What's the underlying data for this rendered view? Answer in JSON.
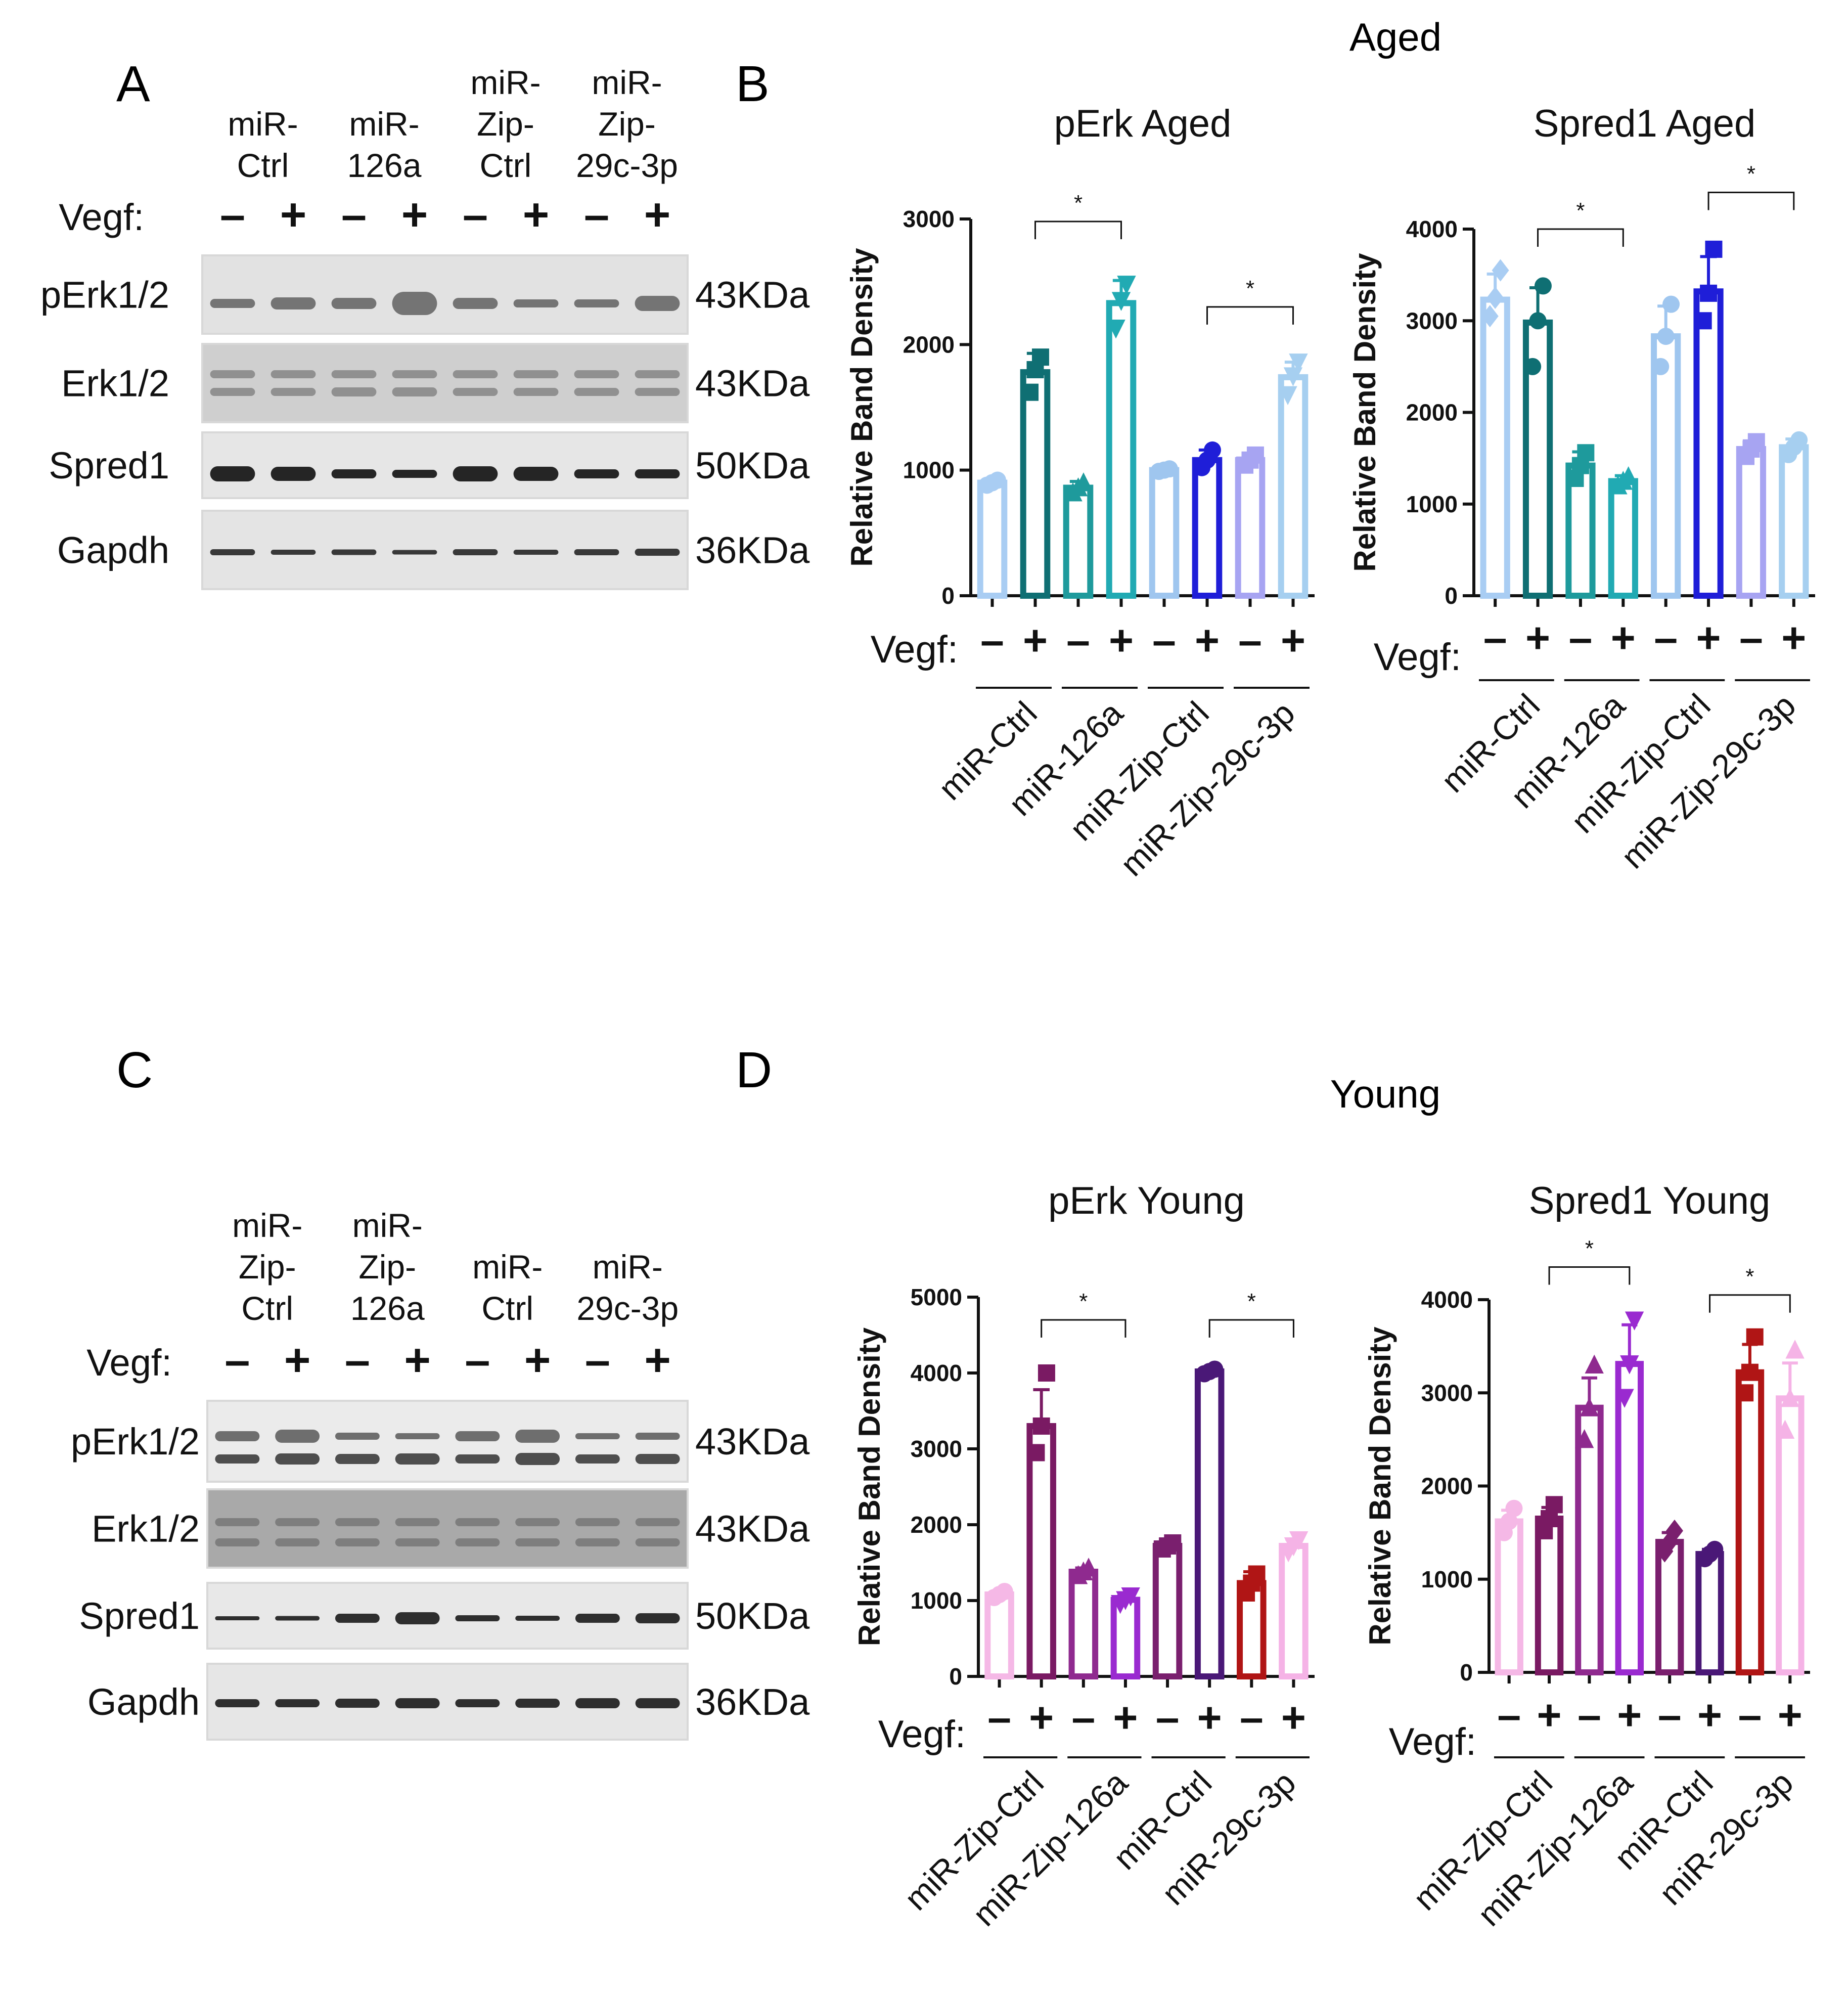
{
  "figure": {
    "panel_a": "A",
    "panel_b": "B",
    "panel_c": "C",
    "panel_d": "D",
    "aged_title": "Aged",
    "young_title": "Young"
  },
  "blot_a": {
    "groups": [
      "miR-\nCtrl",
      "miR-\n126a",
      "miR-\nZip-\nCtrl",
      "miR-\nZip-\n29c-3p"
    ],
    "vegf_label": "Vegf:",
    "signs": [
      "-",
      "+",
      "-",
      "+",
      "-",
      "+",
      "-",
      "+"
    ],
    "rows": [
      {
        "label": "pErk1/2",
        "size": "43KDa"
      },
      {
        "label": "Erk1/2",
        "size": "43KDa"
      },
      {
        "label": "Spred1",
        "size": "50KDa"
      },
      {
        "label": "Gapdh",
        "size": "36KDa"
      }
    ]
  },
  "blot_c": {
    "groups": [
      "miR-\nZip-\nCtrl",
      "miR-\nZip-\n126a",
      "miR-\nCtrl",
      "miR-\n29c-3p"
    ],
    "vegf_label": "Vegf:",
    "signs": [
      "-",
      "+",
      "-",
      "+",
      "-",
      "+",
      "-",
      "+"
    ],
    "rows": [
      {
        "label": "pErk1/2",
        "size": "43KDa"
      },
      {
        "label": "Erk1/2",
        "size": "43KDa"
      },
      {
        "label": "Spred1",
        "size": "50KDa"
      },
      {
        "label": "Gapdh",
        "size": "36KDa"
      }
    ]
  },
  "chart_data": [
    {
      "id": "perk_aged",
      "type": "bar",
      "title": "pErk Aged",
      "ylabel": "Relative Band Density",
      "ylim": [
        0,
        3000
      ],
      "yticks": [
        0,
        1000,
        2000,
        3000
      ],
      "vegf_label": "Vegf:",
      "signs": [
        "-",
        "+",
        "-",
        "+",
        "-",
        "+",
        "-",
        "+"
      ],
      "groups": [
        "miR-Ctrl",
        "miR-126a",
        "miR-Zip-Ctrl",
        "miR-Zip-29c-3p"
      ],
      "values": [
        900,
        1780,
        860,
        2330,
        1000,
        1080,
        1080,
        1740
      ],
      "errors": [
        20,
        150,
        50,
        180,
        20,
        80,
        40,
        120
      ],
      "colors": [
        "#a9cdf3",
        "#0f6f73",
        "#1e9a9c",
        "#21aab3",
        "#9fc6ef",
        "#1f1ed8",
        "#a7a4f2",
        "#a6cff0"
      ],
      "markers": [
        "circle",
        "square",
        "triangle",
        "triangle-down",
        "circle",
        "circle",
        "square",
        "triangle-down"
      ],
      "points": [
        [
          880,
          900,
          920
        ],
        [
          1620,
          1800,
          1900
        ],
        [
          820,
          860,
          900
        ],
        [
          2130,
          2350,
          2480
        ],
        [
          990,
          1000,
          1010
        ],
        [
          1020,
          1080,
          1160
        ],
        [
          1040,
          1080,
          1120
        ],
        [
          1600,
          1750,
          1860
        ]
      ],
      "significance": [
        {
          "from": 1,
          "to": 3,
          "label": "*",
          "y": 2980
        },
        {
          "from": 5,
          "to": 7,
          "label": "*",
          "y": 2300
        }
      ]
    },
    {
      "id": "spred1_aged",
      "type": "bar",
      "title": "Spred1 Aged",
      "ylabel": "Relative Band Density",
      "ylim": [
        0,
        4000
      ],
      "yticks": [
        0,
        1000,
        2000,
        3000,
        4000
      ],
      "vegf_label": "Vegf:",
      "signs": [
        "-",
        "+",
        "-",
        "+",
        "-",
        "+",
        "-",
        "+"
      ],
      "groups": [
        "miR-Ctrl",
        "miR-126a",
        "miR-Zip-Ctrl",
        "miR-Zip-29c-3p"
      ],
      "values": [
        3230,
        2980,
        1420,
        1250,
        2830,
        3320,
        1600,
        1620
      ],
      "errors": [
        280,
        380,
        150,
        60,
        330,
        380,
        90,
        90
      ],
      "colors": [
        "#a9cdf3",
        "#0f6f73",
        "#1e9a9c",
        "#21aab3",
        "#9fc6ef",
        "#1f1ed8",
        "#a7a4f2",
        "#a6cff0"
      ],
      "markers": [
        "diamond",
        "circle",
        "square",
        "triangle",
        "circle",
        "square",
        "square",
        "circle"
      ],
      "points": [
        [
          3050,
          3250,
          3550
        ],
        [
          2500,
          3000,
          3380
        ],
        [
          1280,
          1420,
          1560
        ],
        [
          1200,
          1250,
          1300
        ],
        [
          2500,
          2830,
          3180
        ],
        [
          3000,
          3300,
          3780
        ],
        [
          1520,
          1600,
          1680
        ],
        [
          1540,
          1620,
          1700
        ]
      ],
      "significance": [
        {
          "from": 1,
          "to": 3,
          "label": "*",
          "y": 4000
        },
        {
          "from": 5,
          "to": 7,
          "label": "*",
          "y": 4400
        }
      ]
    },
    {
      "id": "perk_young",
      "type": "bar",
      "title": "pErk Young",
      "ylabel": "Relative Band Density",
      "ylim": [
        0,
        5000
      ],
      "yticks": [
        0,
        1000,
        2000,
        3000,
        4000,
        5000
      ],
      "vegf_label": "Vegf:",
      "signs": [
        "-",
        "+",
        "-",
        "+",
        "-",
        "+",
        "-",
        "+"
      ],
      "groups": [
        "miR-Zip-Ctrl",
        "miR-Zip-126a",
        "miR-Ctrl",
        "miR-29c-3p"
      ],
      "values": [
        1080,
        3300,
        1380,
        1010,
        1720,
        4020,
        1230,
        1720
      ],
      "errors": [
        40,
        480,
        50,
        50,
        40,
        30,
        150,
        90
      ],
      "colors": [
        "#f5b8e6",
        "#7a1a63",
        "#8f2a8f",
        "#9a2ad0",
        "#7a1f6e",
        "#4a1877",
        "#b01515",
        "#f5b3e6"
      ],
      "markers": [
        "circle",
        "square",
        "triangle",
        "triangle-down",
        "square",
        "circle",
        "square",
        "triangle-down"
      ],
      "points": [
        [
          1040,
          1080,
          1120
        ],
        [
          2950,
          3300,
          4000
        ],
        [
          1330,
          1380,
          1430
        ],
        [
          960,
          1010,
          1060
        ],
        [
          1680,
          1720,
          1760
        ],
        [
          3990,
          4020,
          4050
        ],
        [
          1100,
          1230,
          1350
        ],
        [
          1640,
          1720,
          1800
        ]
      ],
      "significance": [
        {
          "from": 1,
          "to": 3,
          "label": "*",
          "y": 4700
        },
        {
          "from": 5,
          "to": 7,
          "label": "*",
          "y": 4700
        }
      ]
    },
    {
      "id": "spred1_young",
      "type": "bar",
      "title": "Spred1 Young",
      "ylabel": "Relative Band Density",
      "ylim": [
        0,
        4000
      ],
      "yticks": [
        0,
        1000,
        2000,
        3000,
        4000
      ],
      "vegf_label": "Vegf:",
      "signs": [
        "-",
        "+",
        "-",
        "+",
        "-",
        "+",
        "-",
        "+"
      ],
      "groups": [
        "miR-Zip-Ctrl",
        "miR-Zip-126a",
        "miR-Ctrl",
        "miR-29c-3p"
      ],
      "values": [
        1620,
        1650,
        2840,
        3310,
        1400,
        1270,
        3220,
        2940
      ],
      "errors": [
        120,
        120,
        320,
        420,
        100,
        50,
        300,
        380
      ],
      "colors": [
        "#f5b8e6",
        "#7a1a63",
        "#8f2a8f",
        "#9a2ad0",
        "#7a1f6e",
        "#4a1877",
        "#b01515",
        "#f5b3e6"
      ],
      "markers": [
        "circle",
        "square",
        "triangle",
        "triangle-down",
        "diamond",
        "circle",
        "square",
        "triangle"
      ],
      "points": [
        [
          1500,
          1620,
          1760
        ],
        [
          1520,
          1650,
          1800
        ],
        [
          2500,
          2840,
          3300
        ],
        [
          2950,
          3310,
          3780
        ],
        [
          1300,
          1400,
          1520
        ],
        [
          1220,
          1270,
          1320
        ],
        [
          3000,
          3220,
          3600
        ],
        [
          2600,
          2940,
          3460
        ]
      ],
      "significance": [
        {
          "from": 1,
          "to": 3,
          "label": "*",
          "y": 4350
        },
        {
          "from": 5,
          "to": 7,
          "label": "*",
          "y": 4050
        }
      ]
    }
  ]
}
